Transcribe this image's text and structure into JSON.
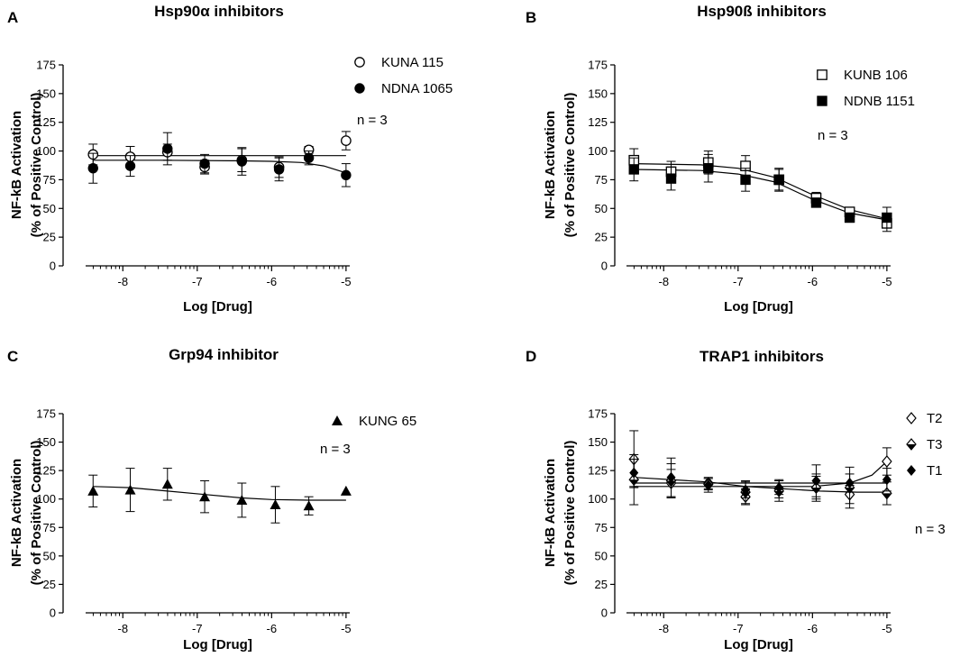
{
  "chart_data": [
    {
      "id": "A",
      "letter": "A",
      "type": "scatter",
      "title": "Hsp90α inhibitors",
      "xlabel": "Log [Drug]",
      "ylabel_line1": "NF-kB Activation",
      "ylabel_line2": "(% of Positive Control)",
      "xlim": [
        -8.5,
        -4.95
      ],
      "ylim": [
        0,
        175
      ],
      "xticks": [
        -8,
        -7,
        -6,
        -5
      ],
      "yticks": [
        0,
        25,
        50,
        75,
        100,
        125,
        150,
        175
      ],
      "note": "n = 3",
      "series": [
        {
          "name": "KUNA 115",
          "marker": "circle-open",
          "x": [
            -8.4,
            -7.9,
            -7.4,
            -6.9,
            -6.4,
            -5.9,
            -5.5,
            -5.0
          ],
          "y": [
            97,
            95,
            99,
            86,
            92,
            86,
            101,
            109
          ],
          "err": [
            9,
            9,
            7,
            6,
            10,
            9,
            3,
            8
          ],
          "fit": [
            [
              -8.4,
              96
            ],
            [
              -5.0,
              96
            ]
          ]
        },
        {
          "name": "NDNA 1065",
          "marker": "circle-filled",
          "x": [
            -8.4,
            -7.9,
            -7.4,
            -6.9,
            -6.4,
            -5.9,
            -5.5,
            -5.0
          ],
          "y": [
            85,
            87,
            102,
            89,
            91,
            84,
            94,
            79
          ],
          "err": [
            13,
            9,
            14,
            8,
            12,
            10,
            6,
            10
          ],
          "fit": [
            [
              -8.4,
              92
            ],
            [
              -7.5,
              92
            ],
            [
              -6.5,
              91.5
            ],
            [
              -6.0,
              91
            ],
            [
              -5.6,
              90
            ],
            [
              -5.3,
              87
            ],
            [
              -5.0,
              81
            ]
          ]
        }
      ]
    },
    {
      "id": "B",
      "letter": "B",
      "type": "scatter",
      "title": "Hsp90ß inhibitors",
      "xlabel": "Log [Drug]",
      "ylabel_line1": "NF-kB Activation",
      "ylabel_line2": "(% of Positive Control)",
      "xlim": [
        -8.5,
        -4.95
      ],
      "ylim": [
        0,
        175
      ],
      "xticks": [
        -8,
        -7,
        -6,
        -5
      ],
      "yticks": [
        0,
        25,
        50,
        75,
        100,
        125,
        150,
        175
      ],
      "note": "n = 3",
      "series": [
        {
          "name": "KUNB 106",
          "marker": "square-open",
          "x": [
            -8.4,
            -7.9,
            -7.4,
            -6.9,
            -6.45,
            -5.95,
            -5.5,
            -5.0
          ],
          "y": [
            92,
            82,
            90,
            87,
            75,
            59,
            47,
            37
          ],
          "err": [
            10,
            9,
            10,
            9,
            10,
            5,
            3,
            7
          ],
          "fit": [
            [
              -8.4,
              89
            ],
            [
              -7.5,
              88
            ],
            [
              -7.0,
              85
            ],
            [
              -6.5,
              77
            ],
            [
              -6.0,
              62
            ],
            [
              -5.5,
              49
            ],
            [
              -5.0,
              41
            ]
          ]
        },
        {
          "name": "NDNB 1151",
          "marker": "square-filled",
          "x": [
            -8.4,
            -7.9,
            -7.4,
            -6.9,
            -6.45,
            -5.95,
            -5.5,
            -5.0
          ],
          "y": [
            84,
            76,
            85,
            75,
            75,
            55,
            42,
            42
          ],
          "err": [
            10,
            10,
            12,
            10,
            9,
            4,
            4,
            9
          ],
          "fit": [
            [
              -8.4,
              84
            ],
            [
              -7.5,
              83
            ],
            [
              -7.0,
              80
            ],
            [
              -6.5,
              73
            ],
            [
              -6.0,
              58
            ],
            [
              -5.5,
              46
            ],
            [
              -5.0,
              40
            ]
          ]
        }
      ]
    },
    {
      "id": "C",
      "letter": "C",
      "type": "scatter",
      "title": "Grp94 inhibitor",
      "xlabel": "Log [Drug]",
      "ylabel_line1": "NF-kB Activation",
      "ylabel_line2": "(% of Positive Control)",
      "xlim": [
        -8.5,
        -4.95
      ],
      "ylim": [
        0,
        175
      ],
      "xticks": [
        -8,
        -7,
        -6,
        -5
      ],
      "yticks": [
        0,
        25,
        50,
        75,
        100,
        125,
        150,
        175
      ],
      "note": "n = 3",
      "series": [
        {
          "name": "KUNG 65",
          "marker": "triangle-filled",
          "x": [
            -8.4,
            -7.9,
            -7.4,
            -6.9,
            -6.4,
            -5.95,
            -5.5,
            -5.0
          ],
          "y": [
            107,
            108,
            113,
            102,
            99,
            95,
            94,
            107
          ],
          "err": [
            14,
            19,
            14,
            14,
            15,
            16,
            8,
            0
          ],
          "fit": [
            [
              -8.4,
              111
            ],
            [
              -7.9,
              110
            ],
            [
              -7.4,
              107
            ],
            [
              -6.9,
              104
            ],
            [
              -6.4,
              101
            ],
            [
              -6.0,
              99.5
            ],
            [
              -5.5,
              99
            ],
            [
              -5.0,
              99
            ]
          ]
        }
      ]
    },
    {
      "id": "D",
      "letter": "D",
      "type": "scatter",
      "title": "TRAP1 inhibitors",
      "xlabel": "Log [Drug]",
      "ylabel_line1": "NF-kB Activation",
      "ylabel_line2": "(% of Positive Control)",
      "xlim": [
        -8.5,
        -4.95
      ],
      "ylim": [
        0,
        175
      ],
      "xticks": [
        -8,
        -7,
        -6,
        -5
      ],
      "yticks": [
        0,
        25,
        50,
        75,
        100,
        125,
        150,
        175
      ],
      "note": "n = 3",
      "series": [
        {
          "name": "T2",
          "marker": "diamond-open",
          "x": [
            -8.4,
            -7.9,
            -7.4,
            -6.9,
            -6.45,
            -5.95,
            -5.5,
            -5.0
          ],
          "y": [
            135,
            114,
            114,
            102,
            109,
            110,
            104,
            133
          ],
          "err": [
            25,
            12,
            5,
            7,
            8,
            10,
            8,
            12
          ],
          "fit": [
            [
              -8.4,
              111
            ],
            [
              -7.0,
              111
            ],
            [
              -6.0,
              111
            ],
            [
              -5.5,
              114
            ],
            [
              -5.2,
              121
            ],
            [
              -5.0,
              133
            ]
          ]
        },
        {
          "name": "T3",
          "marker": "diamond-half",
          "x": [
            -8.4,
            -7.9,
            -7.4,
            -6.9,
            -6.45,
            -5.95,
            -5.5,
            -5.0
          ],
          "y": [
            117,
            116,
            113,
            106,
            107,
            110,
            110,
            105
          ],
          "err": [
            22,
            15,
            5,
            10,
            9,
            12,
            18,
            10
          ],
          "fit": [
            [
              -8.4,
              119
            ],
            [
              -7.4,
              115
            ],
            [
              -6.9,
              111
            ],
            [
              -6.4,
              109
            ],
            [
              -5.9,
              107
            ],
            [
              -5.4,
              106
            ],
            [
              -5.0,
              106
            ]
          ]
        },
        {
          "name": "T1",
          "marker": "diamond-filled",
          "x": [
            -8.4,
            -7.9,
            -7.4,
            -6.9,
            -6.45,
            -5.95,
            -5.5,
            -5.0
          ],
          "y": [
            123,
            119,
            112,
            108,
            110,
            116,
            114,
            117
          ],
          "err": [
            12,
            17,
            6,
            7,
            6,
            14,
            8,
            10
          ],
          "fit": [
            [
              -8.4,
              114
            ],
            [
              -5.0,
              114
            ]
          ]
        }
      ]
    }
  ]
}
